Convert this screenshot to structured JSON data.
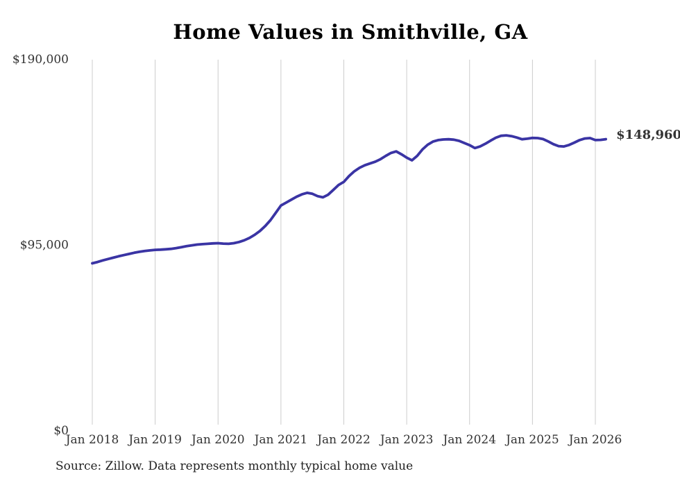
{
  "title": "Home Values in Smithville, GA",
  "source_note": "Source: Zillow. Data represents monthly typical home value",
  "colors": {
    "background": "#ffffff",
    "line": "#3a34a4",
    "value_label": "#332f9b",
    "grid": "#cccccc",
    "tick_text": "#333333",
    "title_text": "#000000",
    "source_text": "#222222"
  },
  "chart_data": {
    "type": "line",
    "title": "Home Values in Smithville, GA",
    "xlabel": "",
    "ylabel": "",
    "ylim": [
      0,
      190000
    ],
    "grid": "vertical-only",
    "legend": "none",
    "last_value_label": "$148,960",
    "x_ticks": [
      {
        "label": "Jan 2018",
        "month": 0
      },
      {
        "label": "Jan 2019",
        "month": 12
      },
      {
        "label": "Jan 2020",
        "month": 24
      },
      {
        "label": "Jan 2021",
        "month": 36
      },
      {
        "label": "Jan 2022",
        "month": 48
      },
      {
        "label": "Jan 2023",
        "month": 60
      },
      {
        "label": "Jan 2024",
        "month": 72
      },
      {
        "label": "Jan 2025",
        "month": 84
      },
      {
        "label": "Jan 2026",
        "month": 96
      }
    ],
    "y_ticks": [
      {
        "label": "$0",
        "value": 0
      },
      {
        "label": "$95,000",
        "value": 95000
      },
      {
        "label": "$190,000",
        "value": 190000
      }
    ],
    "series": [
      {
        "name": "Typical home value",
        "start": "Jan 2018",
        "interval": "monthly",
        "values": [
          85400,
          86100,
          86900,
          87600,
          88300,
          89000,
          89600,
          90200,
          90800,
          91300,
          91700,
          92000,
          92300,
          92400,
          92600,
          92800,
          93200,
          93700,
          94200,
          94600,
          95000,
          95200,
          95400,
          95600,
          95700,
          95500,
          95400,
          95700,
          96300,
          97200,
          98400,
          100000,
          102000,
          104500,
          107500,
          111200,
          115000,
          116500,
          118000,
          119500,
          120700,
          121500,
          121000,
          119800,
          119200,
          120500,
          123000,
          125500,
          127100,
          130100,
          132500,
          134300,
          135600,
          136500,
          137400,
          138700,
          140400,
          141900,
          142700,
          141200,
          139500,
          138100,
          140400,
          143700,
          146100,
          147700,
          148500,
          148800,
          148900,
          148700,
          148100,
          147000,
          145900,
          144400,
          145200,
          146600,
          148200,
          149700,
          150700,
          150900,
          150500,
          149800,
          148900,
          149200,
          149600,
          149500,
          149000,
          147800,
          146400,
          145400,
          145200,
          146000,
          147200,
          148500,
          149300,
          149500,
          148500,
          148600,
          148960
        ]
      }
    ]
  }
}
